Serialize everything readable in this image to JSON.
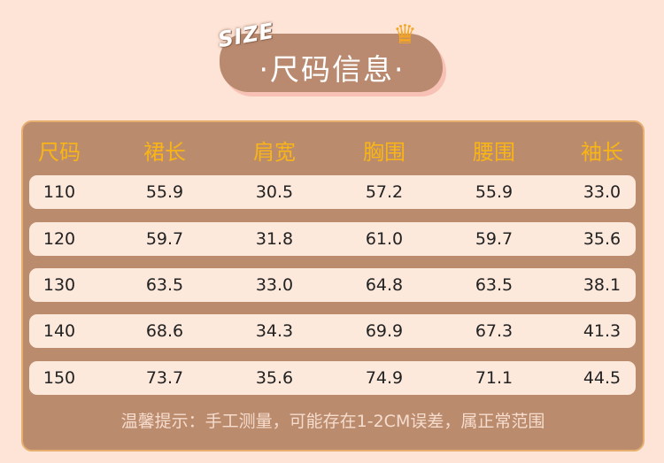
{
  "header": {
    "badge": "SIZE",
    "title": "·尺码信息·",
    "crown_icon": "crown-icon"
  },
  "table": {
    "columns": [
      "尺码",
      "裙长",
      "肩宽",
      "胸围",
      "腰围",
      "袖长"
    ],
    "rows": [
      [
        "110",
        "55.9",
        "30.5",
        "57.2",
        "55.9",
        "33.0"
      ],
      [
        "120",
        "59.7",
        "31.8",
        "61.0",
        "59.7",
        "35.6"
      ],
      [
        "130",
        "63.5",
        "33.0",
        "64.8",
        "63.5",
        "38.1"
      ],
      [
        "140",
        "68.6",
        "34.3",
        "69.9",
        "67.3",
        "41.3"
      ],
      [
        "150",
        "73.7",
        "35.6",
        "74.9",
        "71.1",
        "44.5"
      ]
    ]
  },
  "footer": {
    "note": "温馨提示：手工测量，可能存在1-2CM误差，属正常范围"
  },
  "colors": {
    "background": "#fde4d6",
    "panel": "#bb8b6e",
    "header_text": "#f8b515",
    "row": "#fde8dc"
  }
}
